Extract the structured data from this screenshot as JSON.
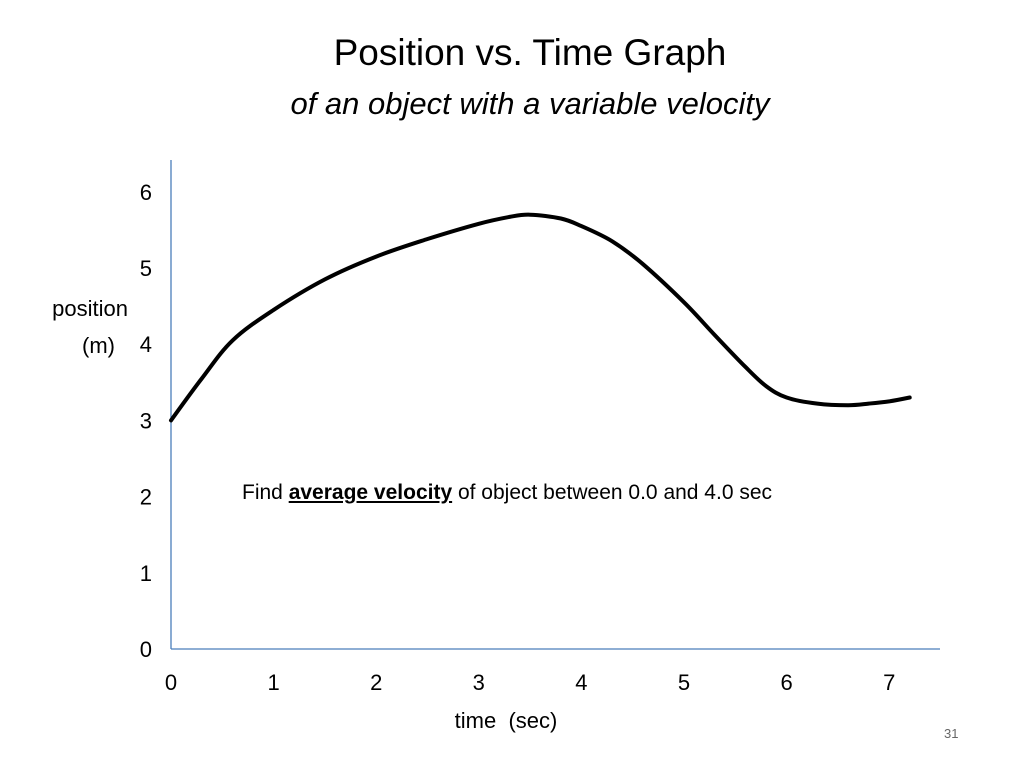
{
  "slide": {
    "title": "Position vs. Time Graph",
    "subtitle": "of an object with a variable velocity",
    "annotation": {
      "prefix": "Find ",
      "emphasis": "average velocity",
      "suffix": " of object between 0.0 and 4.0 sec"
    },
    "page_number": "31"
  },
  "chart_data": {
    "type": "line",
    "xlabel": "time  (sec)",
    "ylabel_line1": "position",
    "ylabel_line2": "(m)",
    "xlim": [
      0,
      7.5
    ],
    "ylim": [
      0,
      6.3
    ],
    "x_ticks": [
      "0",
      "1",
      "2",
      "3",
      "4",
      "5",
      "6",
      "7"
    ],
    "y_ticks": [
      "0",
      "1",
      "2",
      "3",
      "4",
      "5",
      "6"
    ],
    "grid": false,
    "axis_color": "#4a7ebb",
    "line_color": "#000000",
    "series": [
      {
        "x": [
          0,
          0.3,
          0.6,
          1.0,
          1.5,
          2.0,
          2.5,
          3.0,
          3.3,
          3.5,
          3.8,
          4.0,
          4.3,
          4.6,
          5.0,
          5.3,
          5.6,
          5.8,
          6.0,
          6.3,
          6.6,
          6.8,
          7.0,
          7.2
        ],
        "y": [
          3.0,
          3.55,
          4.05,
          4.45,
          4.85,
          5.15,
          5.38,
          5.58,
          5.67,
          5.7,
          5.65,
          5.55,
          5.35,
          5.05,
          4.55,
          4.12,
          3.7,
          3.45,
          3.3,
          3.22,
          3.2,
          3.22,
          3.25,
          3.3
        ]
      }
    ]
  }
}
